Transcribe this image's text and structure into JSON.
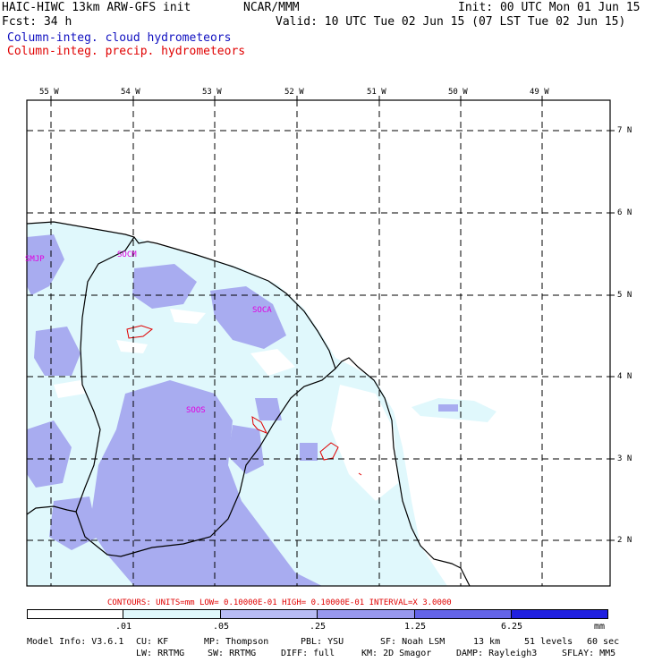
{
  "header": {
    "title": "HAIC-HIWC 13km ARW-GFS init",
    "center": "NCAR/MMM",
    "init": "Init: 00 UTC Mon 01 Jun 15",
    "fcst": "Fcst:   34 h",
    "valid": "Valid: 10 UTC Tue 02 Jun 15 (07 LST Tue 02 Jun 15)",
    "field1": "Column-integ. cloud hydrometeors",
    "field2": "Column-integ. precip. hydrometeors",
    "field1_color": "#1010c0",
    "field2_color": "#e00000"
  },
  "map": {
    "lon_labels": [
      "55 W",
      "54 W",
      "53 W",
      "52 W",
      "51 W",
      "50 W",
      "49 W"
    ],
    "lat_labels": [
      "7 N",
      "6 N",
      "5 N",
      "4 N",
      "3 N",
      "2 N"
    ],
    "stations": [
      "SMJP",
      "SOCM",
      "SOCA",
      "SOOS"
    ],
    "station_color": "#e000e0"
  },
  "contours": "CONTOURS:  UNITS=mm  LOW= 0.10000E-01  HIGH= 0.10000E-01  INTERVAL=X  3.0000",
  "colorbar": {
    "labels": [
      ".01",
      ".05",
      ".25",
      "1.25",
      "6.25"
    ],
    "unit": "mm",
    "colors": [
      "#ffffff",
      "#e0f8fc",
      "#b8bcf4",
      "#9898ee",
      "#6464e8",
      "#2020e0"
    ]
  },
  "model_info": {
    "line1": [
      "Model Info: V3.6.1",
      "CU: KF",
      "MP: Thompson",
      "PBL: YSU",
      "SF: Noah LSM",
      "13 km",
      "51 levels",
      "60 sec"
    ],
    "line2": [
      "LW: RRTMG",
      "SW: RRTMG",
      "DIFF: full",
      "KM: 2D Smagor",
      "DAMP: Rayleigh3",
      "SFLAY: MM5"
    ]
  }
}
